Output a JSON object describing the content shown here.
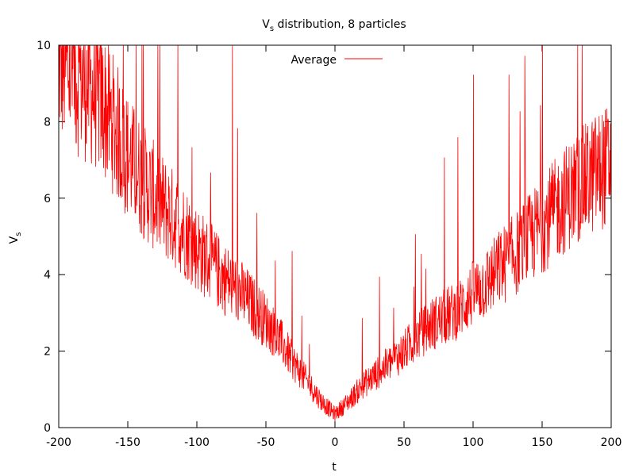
{
  "chart_data": {
    "type": "line",
    "title": {
      "prefix": "V",
      "subscript": "s",
      "suffix": " distribution, 8 particles"
    },
    "xlabel": "t",
    "ylabel": {
      "main": "V",
      "subscript": "s"
    },
    "xlim": [
      -200,
      200
    ],
    "ylim": [
      0,
      10
    ],
    "xticks": [
      "-200",
      "-150",
      "-100",
      "-50",
      "0",
      "50",
      "100",
      "150",
      "200"
    ],
    "yticks": [
      "0",
      "2",
      "4",
      "6",
      "8",
      "10"
    ],
    "legend": {
      "position": "top-center"
    },
    "series": [
      {
        "name": "Average",
        "color": "#ff0000",
        "x": [
          -200,
          -190,
          -180,
          -170,
          -160,
          -150,
          -140,
          -130,
          -120,
          -110,
          -100,
          -90,
          -80,
          -70,
          -60,
          -50,
          -40,
          -30,
          -20,
          -10,
          0,
          10,
          20,
          30,
          40,
          50,
          60,
          70,
          80,
          90,
          100,
          110,
          120,
          130,
          140,
          150,
          160,
          170,
          180,
          190,
          200
        ],
        "values": [
          9.6,
          9.3,
          9.0,
          8.6,
          7.9,
          7.1,
          6.5,
          6.0,
          5.6,
          5.2,
          4.7,
          4.3,
          3.9,
          3.6,
          3.2,
          2.8,
          2.3,
          1.7,
          1.2,
          0.7,
          0.35,
          0.7,
          1.1,
          1.4,
          1.7,
          2.0,
          2.4,
          2.7,
          2.9,
          3.1,
          3.5,
          3.8,
          4.2,
          4.5,
          4.9,
          5.3,
          5.7,
          6.1,
          6.4,
          6.7,
          6.9
        ]
      }
    ]
  }
}
